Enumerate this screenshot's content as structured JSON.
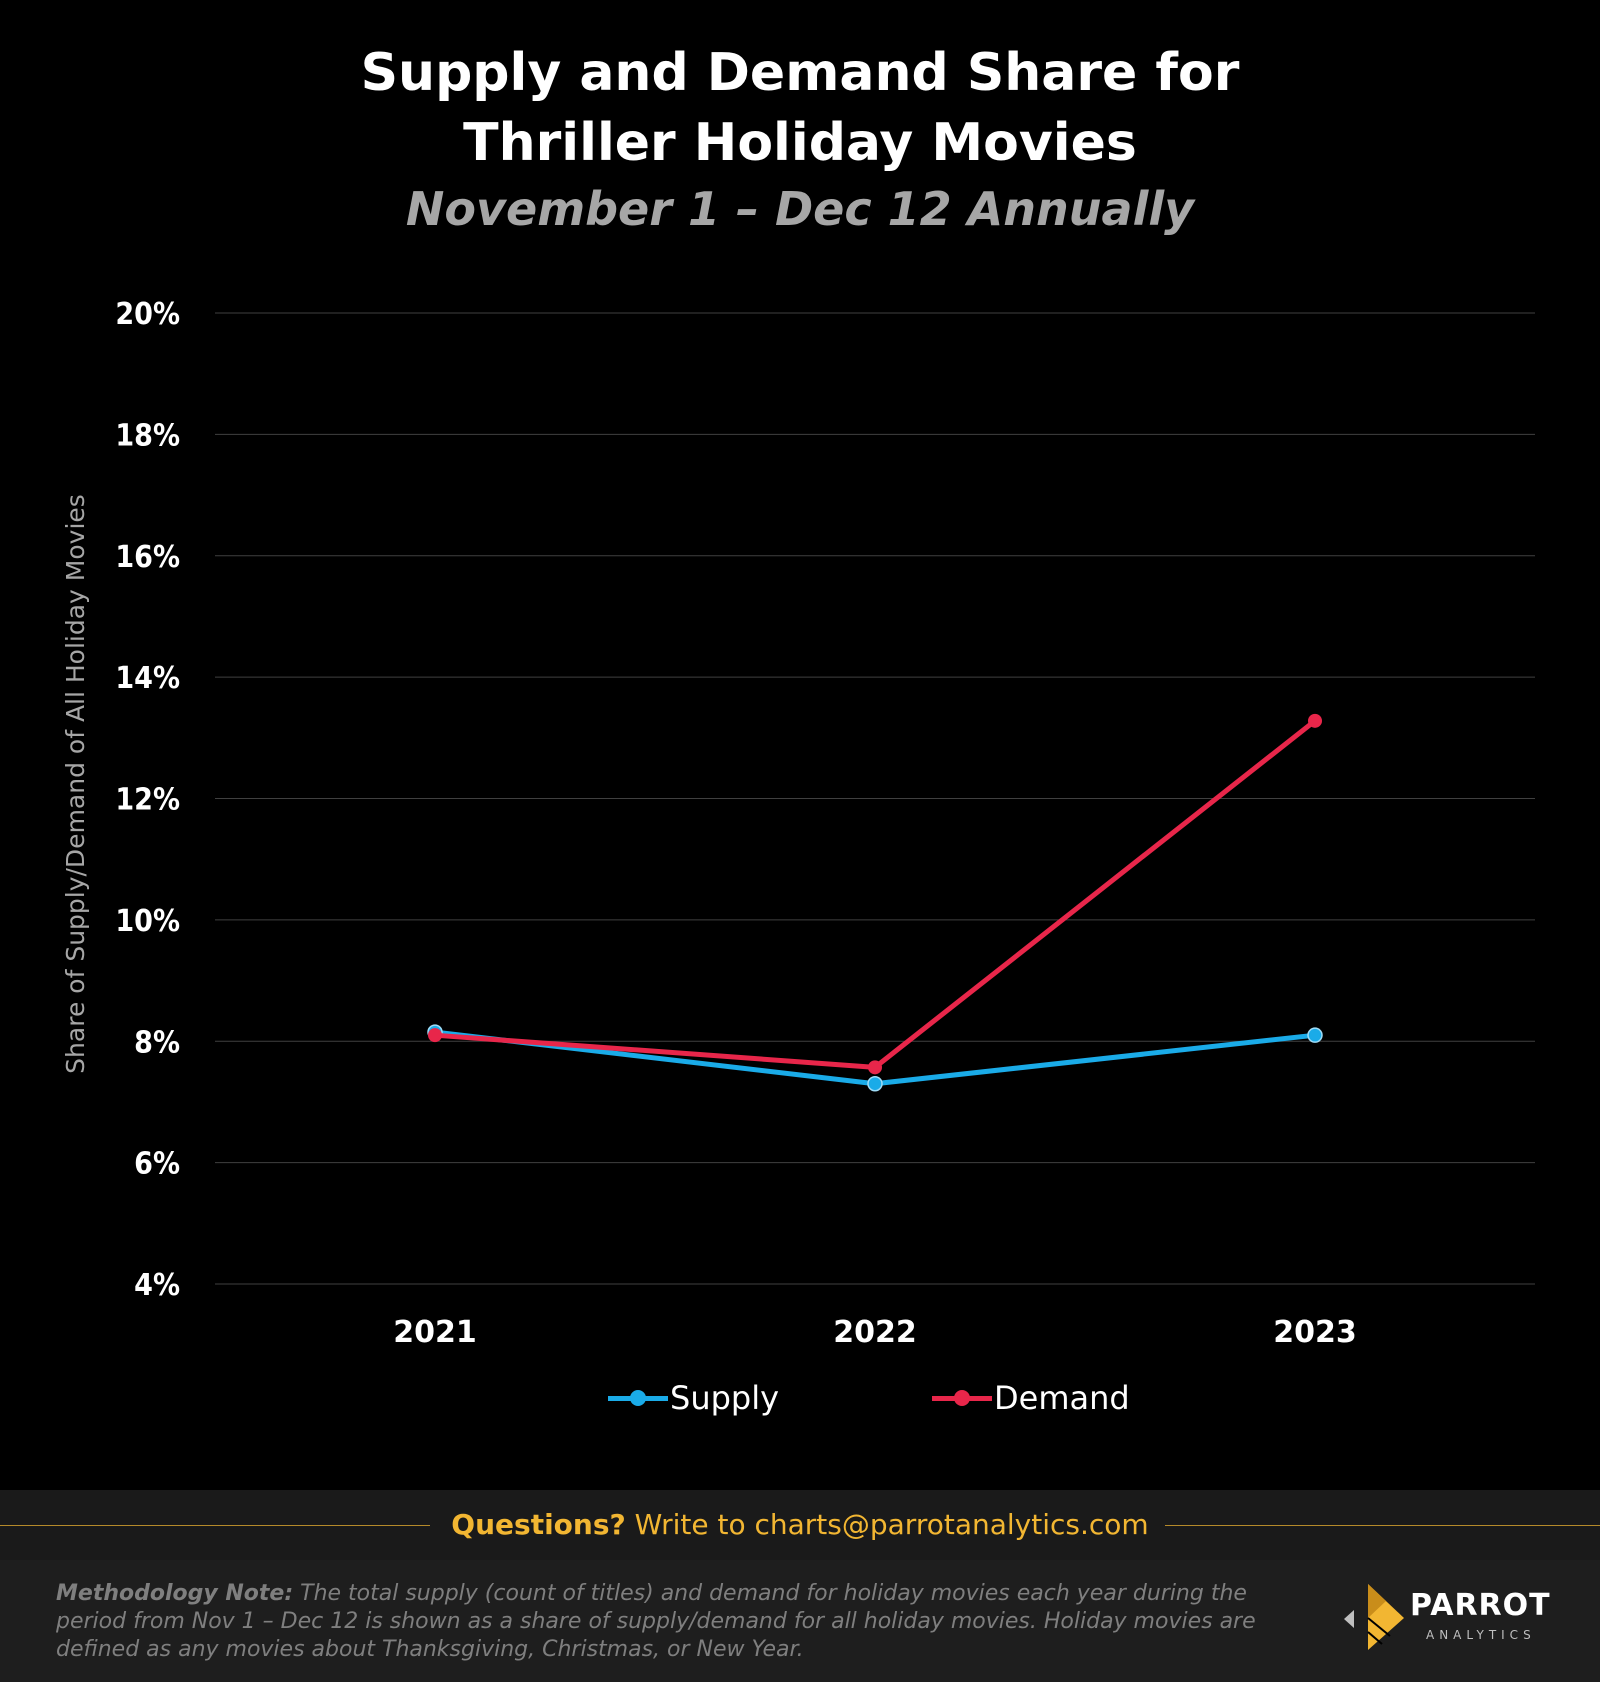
{
  "chart_data": {
    "type": "line",
    "title_line1": "Supply and Demand Share for",
    "title_line2": "Thriller Holiday Movies",
    "subtitle": "November  1 – Dec 12 Annually",
    "ylabel": "Share of Supply/Demand of All Holiday Movies",
    "xlabel": "",
    "categories": [
      "2021",
      "2022",
      "2023"
    ],
    "ylim": [
      4,
      20
    ],
    "yticks": [
      {
        "value": 20,
        "label": "20%"
      },
      {
        "value": 18,
        "label": "18%"
      },
      {
        "value": 16,
        "label": "16%"
      },
      {
        "value": 14,
        "label": "14%"
      },
      {
        "value": 12,
        "label": "12%"
      },
      {
        "value": 10,
        "label": "10%"
      },
      {
        "value": 8,
        "label": "8%"
      },
      {
        "value": 6,
        "label": "6%"
      },
      {
        "value": 4,
        "label": "4%"
      }
    ],
    "grid": true,
    "legend_position": "bottom-center",
    "series": [
      {
        "name": "Supply",
        "color": "#1aabe8",
        "values": [
          8.15,
          7.3,
          8.1
        ]
      },
      {
        "name": "Demand",
        "color": "#e8264a",
        "values": [
          8.1,
          7.57,
          13.28
        ]
      }
    ]
  },
  "footer": {
    "questions_label": "Questions?",
    "questions_text": "Write to charts@parrotanalytics.com",
    "methodology_label": "Methodology Note:",
    "methodology_text": "The total supply (count of titles) and demand for holiday movies each year during the period from Nov 1 – Dec 12 is shown as a share of supply/demand for all holiday movies.  Holiday movies are defined as any movies about Thanksgiving, Christmas, or New Year."
  },
  "logo": {
    "brand": "PARROT",
    "sub": "ANALYTICS",
    "accent": "#f2b632"
  }
}
